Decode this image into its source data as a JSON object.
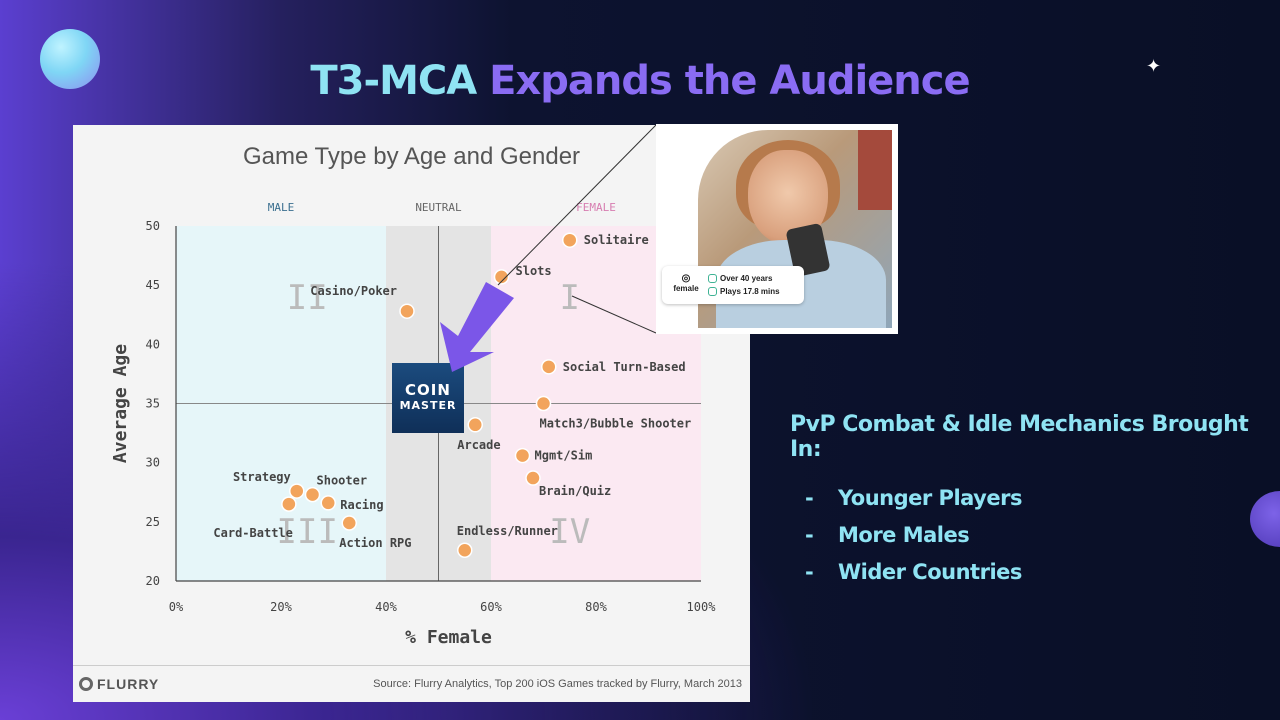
{
  "slide": {
    "title_part1": "T3-MCA",
    "title_part2": "Expands the Audience",
    "sparkle_icon": "✦",
    "accent_cyan": "#8fe3f3",
    "accent_purple": "#8a6cf3"
  },
  "chart_source": {
    "logo_text": "FLURRY",
    "note": "Source: Flurry Analytics, Top 200 iOS Games tracked by Flurry, March 2013"
  },
  "badge": {
    "line1": "COIN",
    "line2": "MASTER"
  },
  "persona": {
    "gender": "female",
    "age": "Over 40 years",
    "playtime": "Plays 17.8 mins"
  },
  "takeaways": {
    "heading": "PvP Combat & Idle Mechanics Brought In:",
    "items": [
      {
        "dash": "-",
        "label": "Younger Players"
      },
      {
        "dash": "-",
        "label": "More Males"
      },
      {
        "dash": "-",
        "label": "Wider Countries"
      }
    ]
  },
  "chart_data": {
    "type": "scatter",
    "title": "Game Type by Age and Gender",
    "xlabel": "% Female",
    "ylabel": "Average Age",
    "xlim": [
      0,
      100
    ],
    "ylim": [
      20,
      50
    ],
    "x_ticks": [
      "0%",
      "20%",
      "40%",
      "60%",
      "80%",
      "100%"
    ],
    "y_ticks": [
      "20",
      "25",
      "30",
      "35",
      "40",
      "45",
      "50"
    ],
    "regions": [
      {
        "label": "MALE",
        "x_range": [
          0,
          40
        ],
        "color": "#e6f6f9"
      },
      {
        "label": "NEUTRAL",
        "x_range": [
          40,
          60
        ],
        "color": "#e4e4e4"
      },
      {
        "label": "FEMALE",
        "x_range": [
          60,
          100
        ],
        "color": "#fbe9f2"
      }
    ],
    "quadrant_labels": [
      "II",
      "I",
      "III",
      "IV"
    ],
    "midlines": {
      "x": 50,
      "y": 35
    },
    "grid": false,
    "point_color": "#f2a45c",
    "points": [
      {
        "label": "Solitaire",
        "x": 75,
        "y": 48.8
      },
      {
        "label": "Slots",
        "x": 62,
        "y": 45.7
      },
      {
        "label": "Casino/Poker",
        "x": 44,
        "y": 42.8
      },
      {
        "label": "Social Turn-Based",
        "x": 71,
        "y": 38.1
      },
      {
        "label": "Match3/Bubble Shooter",
        "x": 70,
        "y": 35
      },
      {
        "label": "Arcade",
        "x": 57,
        "y": 33.2
      },
      {
        "label": "Mgmt/Sim",
        "x": 66,
        "y": 30.6
      },
      {
        "label": "Brain/Quiz",
        "x": 68,
        "y": 28.7
      },
      {
        "label": "Strategy",
        "x": 23,
        "y": 27.6
      },
      {
        "label": "Shooter",
        "x": 26,
        "y": 27.3
      },
      {
        "label": "Racing",
        "x": 29,
        "y": 26.6
      },
      {
        "label": "Card-Battle",
        "x": 21.5,
        "y": 26.5
      },
      {
        "label": "Action RPG",
        "x": 33,
        "y": 24.9
      },
      {
        "label": "Endless/Runner",
        "x": 55,
        "y": 22.6
      }
    ]
  }
}
